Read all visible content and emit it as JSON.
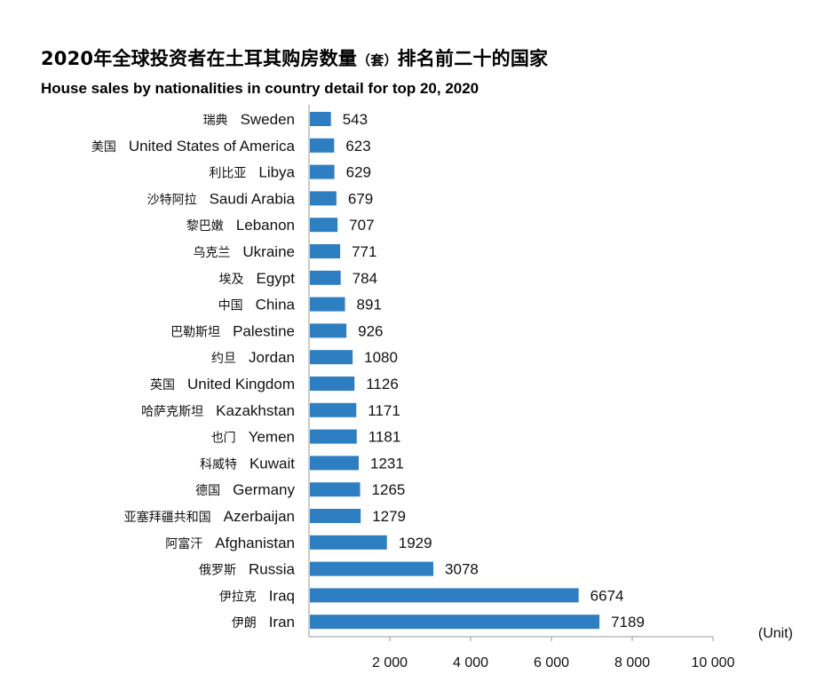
{
  "title_cn": "2020年全球投资者在土耳其购房数量",
  "title_cn_note": "（套）",
  "title_cn_tail": "排名前二十的国家",
  "title_en": "House sales by nationalities in country detail for top 20, 2020",
  "chart_data": {
    "type": "bar",
    "orientation": "horizontal",
    "categories": [
      {
        "cn": "瑞典",
        "en": "Sweden"
      },
      {
        "cn": "美国",
        "en": "United States of America"
      },
      {
        "cn": "利比亚",
        "en": "Libya"
      },
      {
        "cn": "沙特阿拉",
        "en": "Saudi Arabia"
      },
      {
        "cn": "黎巴嫩",
        "en": "Lebanon"
      },
      {
        "cn": "乌克兰",
        "en": "Ukraine"
      },
      {
        "cn": "埃及",
        "en": "Egypt"
      },
      {
        "cn": "中国",
        "en": "China"
      },
      {
        "cn": "巴勒斯坦",
        "en": "Palestine"
      },
      {
        "cn": "约旦",
        "en": "Jordan"
      },
      {
        "cn": "英国",
        "en": "United Kingdom"
      },
      {
        "cn": "哈萨克斯坦",
        "en": "Kazakhstan"
      },
      {
        "cn": "也门",
        "en": "Yemen"
      },
      {
        "cn": "科威特",
        "en": "Kuwait"
      },
      {
        "cn": "德国",
        "en": "Germany"
      },
      {
        "cn": "亚塞拜疆共和国",
        "en": "Azerbaijan"
      },
      {
        "cn": "阿富汗",
        "en": "Afghanistan"
      },
      {
        "cn": "俄罗斯",
        "en": "Russia"
      },
      {
        "cn": "伊拉克",
        "en": "Iraq"
      },
      {
        "cn": "伊朗",
        "en": "Iran"
      }
    ],
    "values": [
      543,
      623,
      629,
      679,
      707,
      771,
      784,
      891,
      926,
      1080,
      1126,
      1171,
      1181,
      1231,
      1265,
      1279,
      1929,
      3078,
      6674,
      7189
    ],
    "xlim": [
      0,
      10000
    ],
    "x_ticks": [
      2000,
      4000,
      6000,
      8000,
      10000
    ],
    "x_tick_labels": [
      "2 000",
      "4 000",
      "6 000",
      "8 000",
      "10 000"
    ],
    "unit_label": "(Unit)",
    "bar_color": "#2e7fc2",
    "grid": false,
    "legend": "none"
  }
}
